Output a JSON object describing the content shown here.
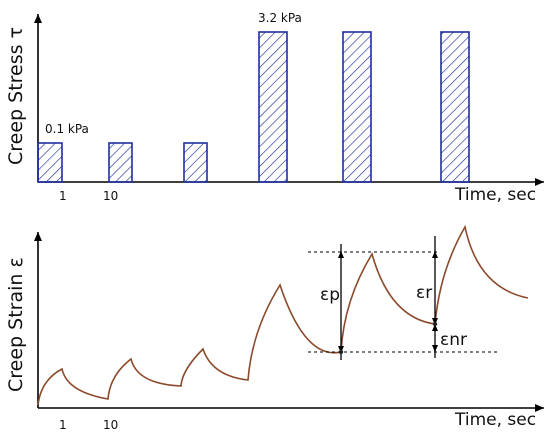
{
  "top_panel": {
    "y_axis_label": "Creep Stress τ",
    "x_axis_label": "Time, sec",
    "low_stress_label": "0.1 kPa",
    "high_stress_label": "3.2 kPa",
    "tick_1": "1",
    "tick_10": "10",
    "bar_color": "#1f2f9f"
  },
  "bottom_panel": {
    "y_axis_label": "Creep Strain ε",
    "x_axis_label": "Time, sec",
    "tick_1": "1",
    "tick_10": "10",
    "eps_p": "εp",
    "eps_r": "εr",
    "eps_nr": "εnr",
    "curve_color": "#8b4a2b"
  }
}
